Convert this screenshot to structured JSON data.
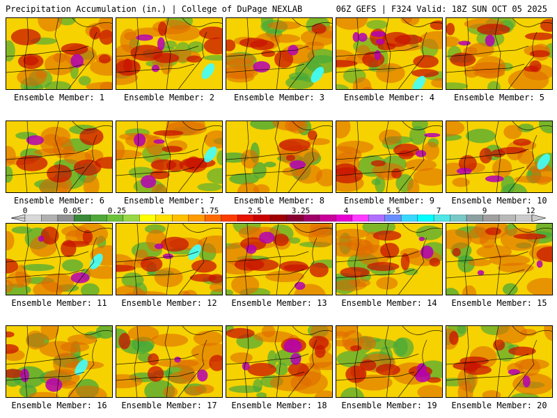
{
  "header": {
    "left": "Precipitation Accumulation (in.) | College of DuPage NEXLAB",
    "right": "06Z GEFS | F324 Valid: 18Z SUN OCT 05 2025"
  },
  "colorbar": {
    "tick_labels": [
      "0",
      "0.05",
      "0.25",
      "1",
      "1.75",
      "2.5",
      "3.25",
      "4",
      "5.5",
      "7",
      "9",
      "12"
    ],
    "colors": [
      "#d8d8d8",
      "#b0b0b0",
      "#909090",
      "#3a8a3a",
      "#4fa83a",
      "#6cc23a",
      "#98d848",
      "#ffff00",
      "#ffe000",
      "#ffc000",
      "#ff9a00",
      "#ff6a00",
      "#ff3c00",
      "#e61400",
      "#c80000",
      "#a00000",
      "#880030",
      "#a00068",
      "#c8009a",
      "#e600d0",
      "#ff3cff",
      "#b070ff",
      "#6a8cff",
      "#3ad8ff",
      "#00ffff",
      "#50e6e6",
      "#78c8c8",
      "#8ca0a0",
      "#a0a0a0",
      "#b8b8b8",
      "#cccccc"
    ],
    "label_colors": {
      "base": "#f6d200",
      "hatch": "#e06a00",
      "heavy": "#c81400",
      "extreme": "#b400b4",
      "peak": "#40ffff",
      "green": "#45a83a",
      "grey": "#bdbdbd"
    }
  },
  "members": [
    {
      "label": "Ensemble Member: 1"
    },
    {
      "label": "Ensemble Member: 2"
    },
    {
      "label": "Ensemble Member: 3"
    },
    {
      "label": "Ensemble Member: 4"
    },
    {
      "label": "Ensemble Member: 5"
    },
    {
      "label": "Ensemble Member: 6"
    },
    {
      "label": "Ensemble Member: 7"
    },
    {
      "label": "Ensemble Member: 8"
    },
    {
      "label": "Ensemble Member: 9"
    },
    {
      "label": "Ensemble Member: 10"
    },
    {
      "label": "Ensemble Member: 11"
    },
    {
      "label": "Ensemble Member: 12"
    },
    {
      "label": "Ensemble Member: 13"
    },
    {
      "label": "Ensemble Member: 14"
    },
    {
      "label": "Ensemble Member: 15"
    },
    {
      "label": "Ensemble Member: 16"
    },
    {
      "label": "Ensemble Member: 17"
    },
    {
      "label": "Ensemble Member: 18"
    },
    {
      "label": "Ensemble Member: 19"
    },
    {
      "label": "Ensemble Member: 20"
    }
  ]
}
